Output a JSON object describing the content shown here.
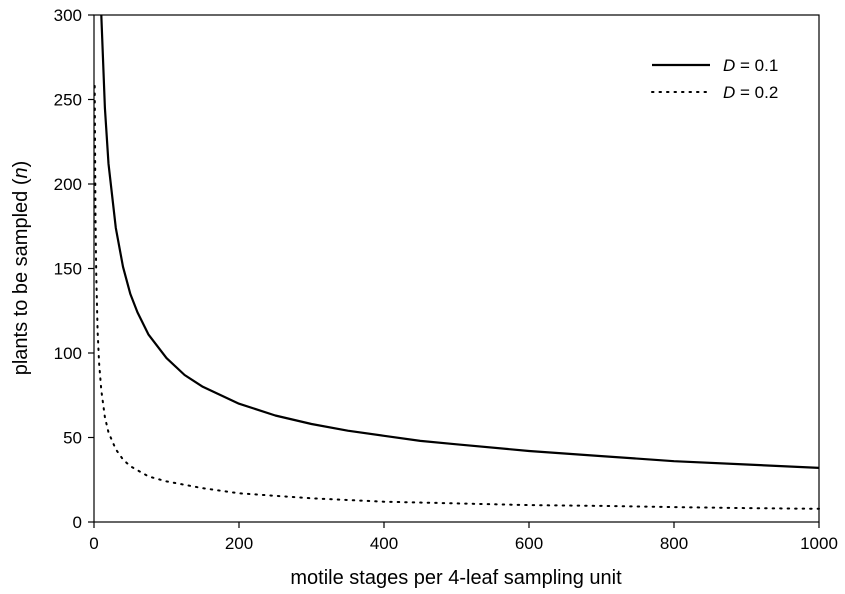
{
  "chart_data": {
    "type": "line",
    "xlabel": "motile stages per 4-leaf sampling unit",
    "ylabel": {
      "prefix": "plants to be sampled (",
      "var": "n",
      "suffix": ")"
    },
    "xlim": [
      0,
      1000
    ],
    "ylim": [
      0,
      300
    ],
    "x_ticks": [
      0,
      200,
      400,
      600,
      800,
      1000
    ],
    "y_ticks": [
      0,
      50,
      100,
      150,
      200,
      250,
      300
    ],
    "grid": false,
    "legend_position": "top-right",
    "series": [
      {
        "name": "D = 0.1",
        "name_var": "D",
        "name_rest": " = 0.1",
        "style": "solid",
        "color": "#000000",
        "points": [
          [
            10,
            302
          ],
          [
            15,
            245
          ],
          [
            20,
            212
          ],
          [
            30,
            174
          ],
          [
            40,
            151
          ],
          [
            50,
            135
          ],
          [
            60,
            124
          ],
          [
            75,
            111
          ],
          [
            100,
            97
          ],
          [
            125,
            87
          ],
          [
            150,
            80
          ],
          [
            175,
            75
          ],
          [
            200,
            70
          ],
          [
            250,
            63
          ],
          [
            300,
            58
          ],
          [
            350,
            54
          ],
          [
            400,
            51
          ],
          [
            450,
            48
          ],
          [
            500,
            46
          ],
          [
            600,
            42
          ],
          [
            700,
            39
          ],
          [
            800,
            36
          ],
          [
            900,
            34
          ],
          [
            1000,
            32
          ]
        ]
      },
      {
        "name": "D = 0.2",
        "name_var": "D",
        "name_rest": " = 0.2",
        "style": "dotted",
        "color": "#000000",
        "points": [
          [
            1,
            258
          ],
          [
            2,
            180
          ],
          [
            3,
            148
          ],
          [
            5,
            113
          ],
          [
            7,
            94
          ],
          [
            10,
            78
          ],
          [
            15,
            62
          ],
          [
            20,
            53
          ],
          [
            30,
            43
          ],
          [
            40,
            37
          ],
          [
            50,
            33
          ],
          [
            75,
            27
          ],
          [
            100,
            24
          ],
          [
            150,
            20
          ],
          [
            200,
            17
          ],
          [
            300,
            14
          ],
          [
            400,
            12
          ],
          [
            500,
            11
          ],
          [
            600,
            10
          ],
          [
            700,
            9.5
          ],
          [
            800,
            8.8
          ],
          [
            900,
            8.2
          ],
          [
            1000,
            7.8
          ]
        ]
      }
    ]
  }
}
